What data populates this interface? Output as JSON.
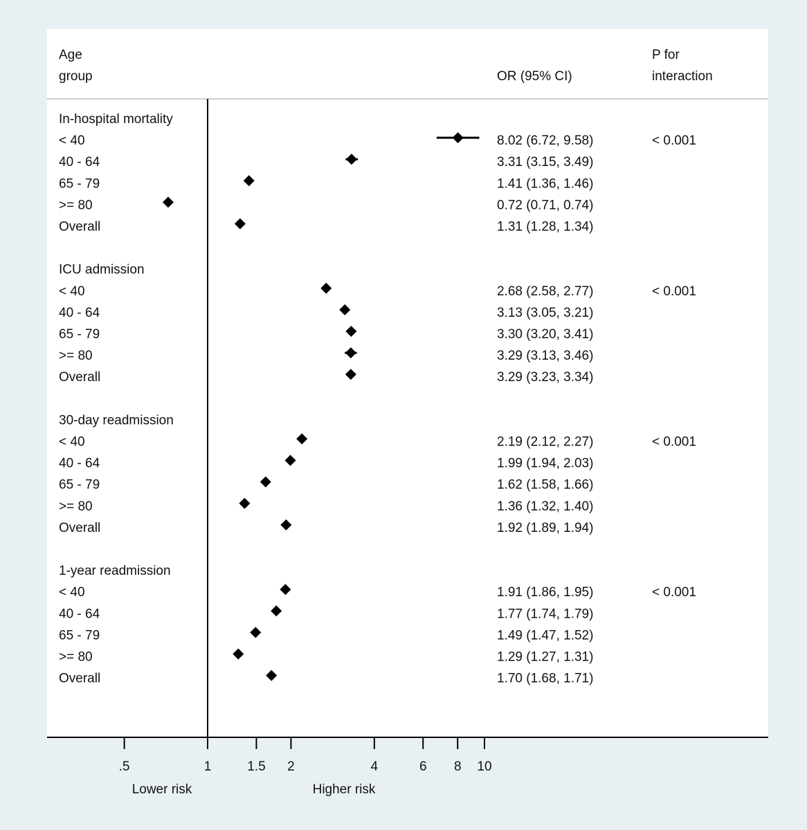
{
  "chart_data": {
    "type": "forest",
    "x_scale": "log",
    "xlim": [
      0.4,
      12
    ],
    "reference_line": 1,
    "header": {
      "label_col": [
        "Age",
        "group"
      ],
      "or_col": "OR (95% CI)",
      "p_col": [
        "P for",
        "interaction"
      ]
    },
    "x_ticks": [
      {
        "value": 0.5,
        "label": ".5"
      },
      {
        "value": 1,
        "label": "1"
      },
      {
        "value": 1.5,
        "label": "1.5"
      },
      {
        "value": 2,
        "label": "2"
      },
      {
        "value": 4,
        "label": "4"
      },
      {
        "value": 6,
        "label": "6"
      },
      {
        "value": 8,
        "label": "8"
      },
      {
        "value": 10,
        "label": "10"
      }
    ],
    "direction_labels": {
      "lower": "Lower risk",
      "higher": "Higher risk"
    },
    "groups": [
      {
        "title": "In-hospital mortality",
        "p": "< 0.001",
        "rows": [
          {
            "label": "< 40",
            "or": 8.02,
            "lo": 6.72,
            "hi": 9.58,
            "text": "8.02 (6.72, 9.58)"
          },
          {
            "label": "40 - 64",
            "or": 3.31,
            "lo": 3.15,
            "hi": 3.49,
            "text": "3.31 (3.15, 3.49)"
          },
          {
            "label": "65 - 79",
            "or": 1.41,
            "lo": 1.36,
            "hi": 1.46,
            "text": "1.41 (1.36, 1.46)"
          },
          {
            "label": ">= 80",
            "or": 0.72,
            "lo": 0.71,
            "hi": 0.74,
            "text": "0.72 (0.71, 0.74)"
          },
          {
            "label": "Overall",
            "or": 1.31,
            "lo": 1.28,
            "hi": 1.34,
            "text": "1.31 (1.28, 1.34)"
          }
        ]
      },
      {
        "title": "ICU admission",
        "p": "< 0.001",
        "rows": [
          {
            "label": "< 40",
            "or": 2.68,
            "lo": 2.58,
            "hi": 2.77,
            "text": "2.68 (2.58, 2.77)"
          },
          {
            "label": "40 - 64",
            "or": 3.13,
            "lo": 3.05,
            "hi": 3.21,
            "text": "3.13 (3.05, 3.21)"
          },
          {
            "label": "65 - 79",
            "or": 3.3,
            "lo": 3.2,
            "hi": 3.41,
            "text": "3.30 (3.20, 3.41)"
          },
          {
            "label": ">= 80",
            "or": 3.29,
            "lo": 3.13,
            "hi": 3.46,
            "text": "3.29 (3.13, 3.46)"
          },
          {
            "label": "Overall",
            "or": 3.29,
            "lo": 3.23,
            "hi": 3.34,
            "text": "3.29 (3.23, 3.34)"
          }
        ]
      },
      {
        "title": "30-day readmission",
        "p": "< 0.001",
        "rows": [
          {
            "label": "< 40",
            "or": 2.19,
            "lo": 2.12,
            "hi": 2.27,
            "text": "2.19 (2.12, 2.27)"
          },
          {
            "label": "40 - 64",
            "or": 1.99,
            "lo": 1.94,
            "hi": 2.03,
            "text": "1.99 (1.94, 2.03)"
          },
          {
            "label": "65 - 79",
            "or": 1.62,
            "lo": 1.58,
            "hi": 1.66,
            "text": "1.62 (1.58, 1.66)"
          },
          {
            "label": ">= 80",
            "or": 1.36,
            "lo": 1.32,
            "hi": 1.4,
            "text": "1.36 (1.32, 1.40)"
          },
          {
            "label": "Overall",
            "or": 1.92,
            "lo": 1.89,
            "hi": 1.94,
            "text": "1.92 (1.89, 1.94)"
          }
        ]
      },
      {
        "title": "1-year readmission",
        "p": "< 0.001",
        "rows": [
          {
            "label": "< 40",
            "or": 1.91,
            "lo": 1.86,
            "hi": 1.95,
            "text": "1.91 (1.86, 1.95)"
          },
          {
            "label": "40 - 64",
            "or": 1.77,
            "lo": 1.74,
            "hi": 1.79,
            "text": "1.77 (1.74, 1.79)"
          },
          {
            "label": "65 - 79",
            "or": 1.49,
            "lo": 1.47,
            "hi": 1.52,
            "text": "1.49 (1.47, 1.52)"
          },
          {
            "label": ">= 80",
            "or": 1.29,
            "lo": 1.27,
            "hi": 1.31,
            "text": "1.29 (1.27, 1.31)"
          },
          {
            "label": "Overall",
            "or": 1.7,
            "lo": 1.68,
            "hi": 1.71,
            "text": "1.70 (1.68, 1.71)"
          }
        ]
      }
    ],
    "colors": {
      "background": "#e8f0f4",
      "panel": "#ffffff",
      "marks": "#000000",
      "divider": "#c8d0d6"
    }
  }
}
